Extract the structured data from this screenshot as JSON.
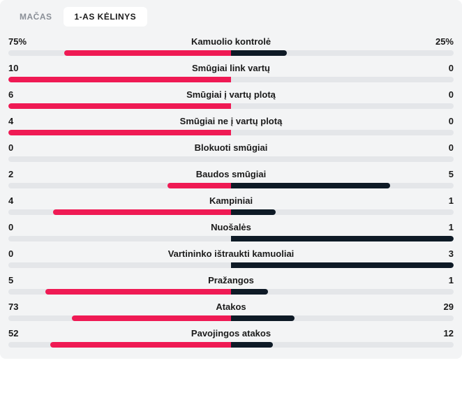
{
  "colors": {
    "leftBar": "#ef1a54",
    "rightBar": "#0e1a26",
    "track": "#e4e6e9"
  },
  "tabs": [
    {
      "label": "MAČAS",
      "active": false
    },
    {
      "label": "1-AS KĖLINYS",
      "active": true
    }
  ],
  "stats": [
    {
      "label": "Kamuolio kontrolė",
      "leftText": "75%",
      "rightText": "25%",
      "leftPct": 37.5,
      "rightPct": 12.5
    },
    {
      "label": "Smūgiai link vartų",
      "leftText": "10",
      "rightText": "0",
      "leftPct": 50,
      "rightPct": 0
    },
    {
      "label": "Smūgiai į vartų plotą",
      "leftText": "6",
      "rightText": "0",
      "leftPct": 50,
      "rightPct": 0
    },
    {
      "label": "Smūgiai ne į vartų plotą",
      "leftText": "4",
      "rightText": "0",
      "leftPct": 50,
      "rightPct": 0
    },
    {
      "label": "Blokuoti smūgiai",
      "leftText": "0",
      "rightText": "0",
      "leftPct": 0,
      "rightPct": 0
    },
    {
      "label": "Baudos smūgiai",
      "leftText": "2",
      "rightText": "5",
      "leftPct": 14.3,
      "rightPct": 35.7
    },
    {
      "label": "Kampiniai",
      "leftText": "4",
      "rightText": "1",
      "leftPct": 40,
      "rightPct": 10
    },
    {
      "label": "Nuošalės",
      "leftText": "0",
      "rightText": "1",
      "leftPct": 0,
      "rightPct": 50
    },
    {
      "label": "Vartininko ištraukti kamuoliai",
      "leftText": "0",
      "rightText": "3",
      "leftPct": 0,
      "rightPct": 50
    },
    {
      "label": "Pražangos",
      "leftText": "5",
      "rightText": "1",
      "leftPct": 41.7,
      "rightPct": 8.3
    },
    {
      "label": "Atakos",
      "leftText": "73",
      "rightText": "29",
      "leftPct": 35.8,
      "rightPct": 14.2
    },
    {
      "label": "Pavojingos atakos",
      "leftText": "52",
      "rightText": "12",
      "leftPct": 40.6,
      "rightPct": 9.4
    }
  ]
}
